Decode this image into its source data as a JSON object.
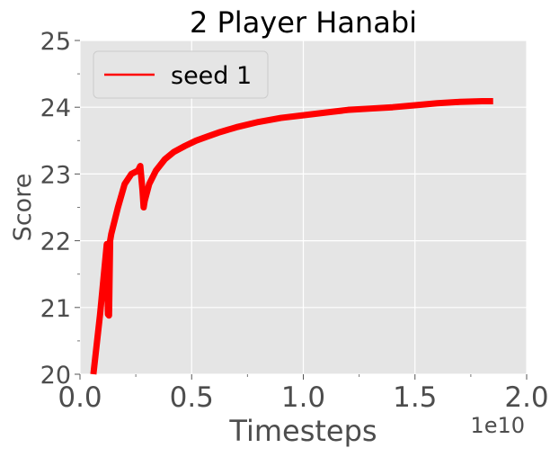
{
  "chart_data": {
    "type": "line",
    "title": "2 Player Hanabi",
    "xlabel": "Timesteps",
    "ylabel": "Score",
    "x_offset_label": "1e10",
    "xlim": [
      0.0,
      2.0
    ],
    "ylim": [
      20,
      25
    ],
    "x_ticks": [
      0.0,
      0.5,
      1.0,
      1.5,
      2.0
    ],
    "x_tick_labels": [
      "0.0",
      "0.5",
      "1.0",
      "1.5",
      "2.0"
    ],
    "y_ticks": [
      20,
      21,
      22,
      23,
      24,
      25
    ],
    "y_tick_labels": [
      "20",
      "21",
      "22",
      "23",
      "24",
      "25"
    ],
    "y_minor_ticks": [
      20.5,
      21.5,
      22.5,
      23.5,
      24.5
    ],
    "x_minor_ticks": [
      0.25,
      0.75,
      1.25,
      1.75
    ],
    "grid": true,
    "legend_position": "top-left",
    "background": "#e5e5e5",
    "grid_color": "#ffffff",
    "series": [
      {
        "name": "seed 1",
        "color": "#ff0000",
        "x": [
          0.06,
          0.09,
          0.12,
          0.125,
          0.13,
          0.135,
          0.14,
          0.17,
          0.2,
          0.23,
          0.26,
          0.27,
          0.28,
          0.285,
          0.29,
          0.31,
          0.34,
          0.38,
          0.42,
          0.47,
          0.52,
          0.57,
          0.62,
          0.7,
          0.8,
          0.9,
          1.0,
          1.1,
          1.2,
          1.3,
          1.4,
          1.5,
          1.6,
          1.7,
          1.8,
          1.85
        ],
        "y": [
          20.0,
          20.9,
          21.95,
          20.9,
          20.88,
          22.0,
          22.1,
          22.5,
          22.85,
          23.0,
          23.05,
          23.12,
          22.75,
          22.5,
          22.6,
          22.85,
          23.05,
          23.22,
          23.33,
          23.42,
          23.5,
          23.56,
          23.62,
          23.7,
          23.78,
          23.84,
          23.88,
          23.92,
          23.96,
          23.98,
          24.0,
          24.03,
          24.06,
          24.08,
          24.09,
          24.09
        ]
      }
    ]
  }
}
